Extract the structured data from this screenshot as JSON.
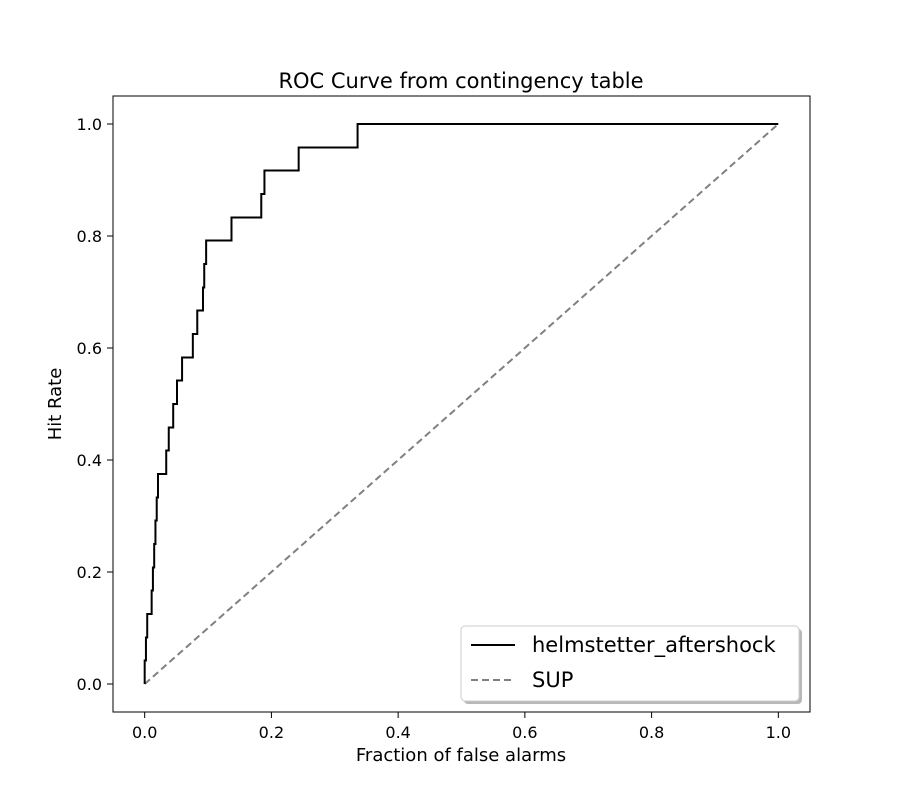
{
  "chart_data": {
    "type": "line",
    "title": "ROC Curve from contingency table",
    "xlabel": "Fraction of false alarms",
    "ylabel": "Hit Rate",
    "xlim": [
      -0.05,
      1.05
    ],
    "ylim": [
      -0.05,
      1.05
    ],
    "xticks": [
      0.0,
      0.2,
      0.4,
      0.6,
      0.8,
      1.0
    ],
    "xtick_labels": [
      "0.0",
      "0.2",
      "0.4",
      "0.6",
      "0.8",
      "1.0"
    ],
    "yticks": [
      0.0,
      0.2,
      0.4,
      0.6,
      0.8,
      1.0
    ],
    "ytick_labels": [
      "0.0",
      "0.2",
      "0.4",
      "0.6",
      "0.8",
      "1.0"
    ],
    "grid": false,
    "legend_position": "lower-right",
    "series": [
      {
        "name": "helmstetter_aftershock",
        "color": "#000000",
        "style": "solid",
        "x": [
          0.0,
          0.0,
          0.002,
          0.002,
          0.004,
          0.004,
          0.011,
          0.011,
          0.013,
          0.013,
          0.015,
          0.015,
          0.017,
          0.017,
          0.019,
          0.019,
          0.021,
          0.021,
          0.034,
          0.034,
          0.038,
          0.038,
          0.045,
          0.045,
          0.051,
          0.051,
          0.059,
          0.059,
          0.076,
          0.076,
          0.083,
          0.083,
          0.092,
          0.092,
          0.094,
          0.094,
          0.097,
          0.097,
          0.137,
          0.137,
          0.184,
          0.184,
          0.189,
          0.189,
          0.243,
          0.243,
          0.336,
          0.336,
          1.0
        ],
        "y": [
          0.0,
          0.042,
          0.042,
          0.083,
          0.083,
          0.125,
          0.125,
          0.167,
          0.167,
          0.208,
          0.208,
          0.25,
          0.25,
          0.292,
          0.292,
          0.333,
          0.333,
          0.375,
          0.375,
          0.417,
          0.417,
          0.458,
          0.458,
          0.5,
          0.5,
          0.542,
          0.542,
          0.583,
          0.583,
          0.625,
          0.625,
          0.667,
          0.667,
          0.708,
          0.708,
          0.75,
          0.75,
          0.792,
          0.792,
          0.833,
          0.833,
          0.875,
          0.875,
          0.917,
          0.917,
          0.958,
          0.958,
          1.0,
          1.0
        ]
      },
      {
        "name": "SUP",
        "color": "#808080",
        "style": "dashed",
        "x": [
          0.0,
          1.0
        ],
        "y": [
          0.0,
          1.0
        ]
      }
    ]
  }
}
